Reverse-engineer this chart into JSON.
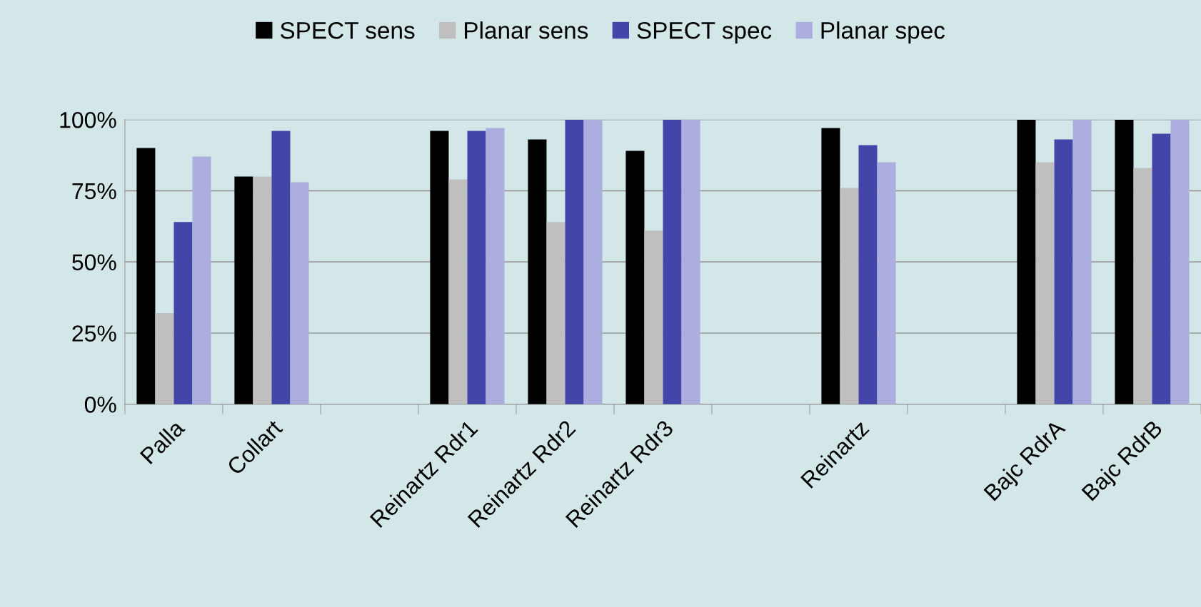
{
  "chart_data": {
    "type": "bar",
    "categories": [
      "Palla",
      "Collart",
      null,
      "Reinartz Rdr1",
      "Reinartz Rdr2",
      "Reinartz Rdr3",
      null,
      "Reinartz",
      null,
      "Bajc RdrA",
      "Bajc RdrB"
    ],
    "series": [
      {
        "name": "SPECT sens",
        "color": "#000000",
        "values": [
          90,
          80,
          null,
          96,
          93,
          89,
          null,
          97,
          null,
          100,
          100
        ]
      },
      {
        "name": "Planar sens",
        "color": "#bfbfbf",
        "values": [
          32,
          80,
          null,
          79,
          64,
          61,
          null,
          76,
          null,
          85,
          83
        ]
      },
      {
        "name": "SPECT spec",
        "color": "#4346a8",
        "values": [
          64,
          96,
          null,
          96,
          100,
          100,
          null,
          91,
          null,
          93,
          95
        ]
      },
      {
        "name": "Planar spec",
        "color": "#adaee0",
        "values": [
          87,
          78,
          null,
          97,
          100,
          100,
          null,
          85,
          null,
          100,
          100
        ]
      }
    ],
    "ylim": [
      0,
      100
    ],
    "yticks": [
      {
        "value": 0,
        "label": "0%"
      },
      {
        "value": 25,
        "label": "25%"
      },
      {
        "value": 50,
        "label": "50%"
      },
      {
        "value": 75,
        "label": "75%"
      },
      {
        "value": 100,
        "label": "100%"
      }
    ],
    "grid": "y",
    "legend": "top"
  }
}
